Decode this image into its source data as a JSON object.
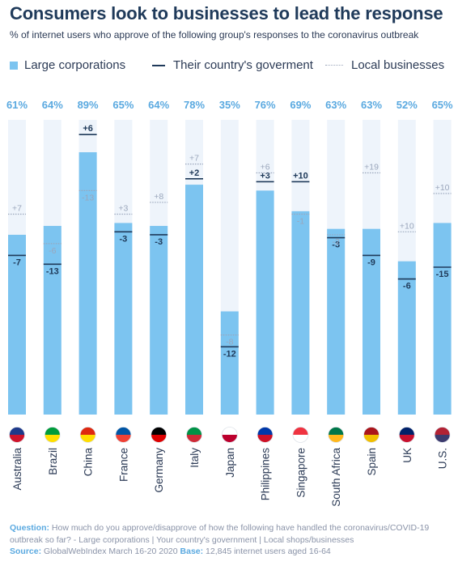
{
  "header": {
    "title": "Consumers look to businesses to lead the response",
    "subtitle": "% of internet users who approve of the following group's responses to the coronavirus outbreak"
  },
  "legend": {
    "large_corporations": "Large corporations",
    "government": "Their country's goverment",
    "local_businesses": "Local businesses"
  },
  "colors": {
    "bar": "#7cc4f0",
    "bar_background": "#eef4fb",
    "top_label": "#5aa9e0",
    "government_line": "#1f3a5a",
    "local_line": "#9aa6bb"
  },
  "chart_data": {
    "type": "bar",
    "ylim": [
      0,
      100
    ],
    "categories": [
      "Australia",
      "Brazil",
      "China",
      "France",
      "Germany",
      "Italy",
      "Japan",
      "Philippines",
      "Singapore",
      "South Africa",
      "Spain",
      "UK",
      "U.S."
    ],
    "flag_icons": [
      "australia-flag-icon",
      "brazil-flag-icon",
      "china-flag-icon",
      "france-flag-icon",
      "germany-flag-icon",
      "italy-flag-icon",
      "japan-flag-icon",
      "philippines-flag-icon",
      "singapore-flag-icon",
      "south-africa-flag-icon",
      "spain-flag-icon",
      "uk-flag-icon",
      "us-flag-icon"
    ],
    "series": [
      {
        "name": "Large corporations",
        "values": [
          61,
          64,
          89,
          65,
          64,
          78,
          35,
          76,
          69,
          63,
          63,
          52,
          65
        ]
      },
      {
        "name": "Their country's goverment",
        "diffs": [
          -7,
          -13,
          6,
          -3,
          -3,
          2,
          -12,
          3,
          10,
          -3,
          -9,
          -6,
          -15
        ]
      },
      {
        "name": "Local businesses",
        "diffs": [
          7,
          -6,
          -13,
          3,
          8,
          7,
          -8,
          6,
          -1,
          -2,
          19,
          10,
          10
        ]
      }
    ],
    "top_labels": [
      "61%",
      "64%",
      "89%",
      "65%",
      "64%",
      "78%",
      "35%",
      "76%",
      "69%",
      "63%",
      "63%",
      "52%",
      "65%"
    ],
    "government_labels": [
      "-7",
      "-13",
      "+6",
      "-3",
      "-3",
      "+2",
      "-12",
      "+3",
      "+10",
      "-3",
      "-9",
      "-6",
      "-15"
    ],
    "local_labels": [
      "+7",
      "-6",
      "-13",
      "+3",
      "+8",
      "+7",
      "-8",
      "+6",
      "-1",
      "-2",
      "+19",
      "+10",
      "+10"
    ]
  },
  "footer": {
    "question_label": "Question:",
    "question_text": "How much do you approve/disapprove of how the following have handled the coronavirus/COVID-19 outbreak so far? - Large corporations | Your country's government | Local shops/businesses",
    "source_label": "Source:",
    "source_text": "GlobalWebIndex March 16-20 2020",
    "base_label": "Base:",
    "base_text": "12,845 internet users aged 16-64"
  }
}
